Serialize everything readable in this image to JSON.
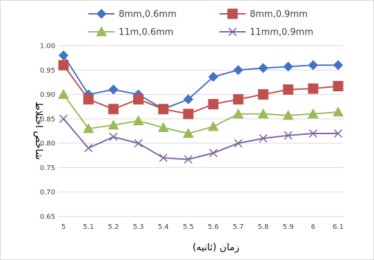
{
  "chart_data": {
    "type": "line",
    "title": "",
    "xlabel": "زمان (ثانیه)",
    "ylabel": "شاخص اختلاط",
    "categories": [
      "5",
      "5.1",
      "5.2",
      "5.3",
      "5.4",
      "5.5",
      "5.6",
      "5.7",
      "5.8",
      "5.9",
      "6",
      "6.1"
    ],
    "ylim": [
      0.65,
      1.0
    ],
    "yticks": [
      "0.65",
      "0.70",
      "0.75",
      "0.80",
      "0.85",
      "0.90",
      "0.95",
      "1.00"
    ],
    "grid": true,
    "legend_position": "top",
    "series": [
      {
        "name": "8mm,0.6mm",
        "color": "#4472C4",
        "marker": "diamond",
        "values": [
          0.98,
          0.9,
          0.91,
          0.9,
          0.87,
          0.89,
          0.936,
          0.95,
          0.954,
          0.957,
          0.96,
          0.96
        ]
      },
      {
        "name": "8mm,0.9mm",
        "color": "#C0504D",
        "marker": "square",
        "values": [
          0.96,
          0.89,
          0.87,
          0.89,
          0.87,
          0.86,
          0.88,
          0.89,
          0.9,
          0.91,
          0.912,
          0.917
        ]
      },
      {
        "name": "11m,0.6mm",
        "color": "#9BBB59",
        "marker": "triangle",
        "values": [
          0.9,
          0.83,
          0.837,
          0.846,
          0.832,
          0.82,
          0.834,
          0.86,
          0.86,
          0.857,
          0.86,
          0.864
        ]
      },
      {
        "name": "11mm,0.9mm",
        "color": "#8064A2",
        "marker": "x",
        "values": [
          0.85,
          0.79,
          0.813,
          0.8,
          0.77,
          0.767,
          0.78,
          0.8,
          0.81,
          0.816,
          0.82,
          0.82
        ]
      }
    ]
  }
}
